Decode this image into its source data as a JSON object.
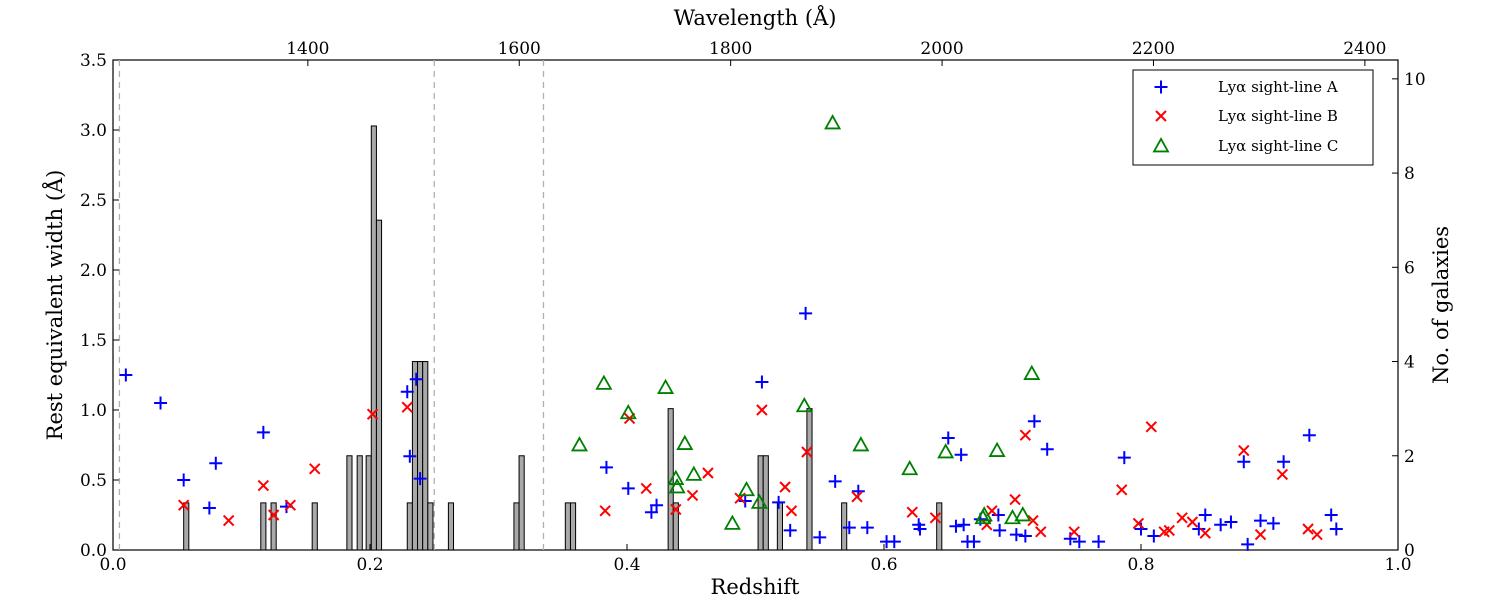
{
  "chart_data": {
    "type": "scatter",
    "x_label": "Redshift",
    "x_ticks": [
      "0.0",
      "0.2",
      "0.4",
      "0.6",
      "0.8",
      "1.0"
    ],
    "x_tick_values": [
      0.0,
      0.2,
      0.4,
      0.6,
      0.8,
      1.0
    ],
    "xlim": [
      0.0,
      1.0
    ],
    "top_label": "Wavelength (Å)",
    "top_ticks": [
      "1400",
      "1600",
      "1800",
      "2000",
      "2200",
      "2400"
    ],
    "top_tick_values": [
      1400,
      1600,
      1800,
      2000,
      2200,
      2400
    ],
    "top_wavelength_at_z0": 1215.67,
    "y_label": "Rest equivalent width (Å)",
    "y_ticks": [
      "0.0",
      "0.5",
      "1.0",
      "1.5",
      "2.0",
      "2.5",
      "3.0",
      "3.5"
    ],
    "y_tick_values": [
      0.0,
      0.5,
      1.0,
      1.5,
      2.0,
      2.5,
      3.0,
      3.5
    ],
    "ylim": [
      0.0,
      3.5
    ],
    "y2_label": "No. of galaxies",
    "y2_ticks": [
      "0",
      "2",
      "4",
      "6",
      "8",
      "10"
    ],
    "y2_tick_values": [
      0,
      2,
      4,
      6,
      8,
      10
    ],
    "y2lim": [
      0,
      10.4
    ],
    "vlines": [
      0.005,
      0.25,
      0.335
    ],
    "histogram": {
      "bin_width": 0.004,
      "bins": [
        [
          0.055,
          1
        ],
        [
          0.115,
          1
        ],
        [
          0.123,
          1
        ],
        [
          0.155,
          1
        ],
        [
          0.182,
          2
        ],
        [
          0.19,
          2
        ],
        [
          0.197,
          2
        ],
        [
          0.201,
          9
        ],
        [
          0.205,
          7
        ],
        [
          0.229,
          1
        ],
        [
          0.233,
          4
        ],
        [
          0.237,
          4
        ],
        [
          0.241,
          4
        ],
        [
          0.245,
          1
        ],
        [
          0.261,
          1
        ],
        [
          0.312,
          1
        ],
        [
          0.316,
          2
        ],
        [
          0.352,
          1
        ],
        [
          0.356,
          1
        ],
        [
          0.432,
          3
        ],
        [
          0.436,
          1
        ],
        [
          0.502,
          2
        ],
        [
          0.506,
          2
        ],
        [
          0.517,
          1
        ],
        [
          0.54,
          3
        ],
        [
          0.567,
          1
        ],
        [
          0.641,
          1
        ]
      ]
    },
    "legend": [
      {
        "label": "Lyα sight-line A",
        "marker": "plus",
        "color": "#0000ff"
      },
      {
        "label": "Lyα sight-line B",
        "marker": "x",
        "color": "#ff0000"
      },
      {
        "label": "Lyα sight-line C",
        "marker": "triangle",
        "color": "#008000"
      }
    ],
    "series": [
      {
        "name": "Lyα sight-line A",
        "marker": "plus",
        "color": "#0000ff",
        "points": [
          [
            0.01,
            1.25
          ],
          [
            0.037,
            1.05
          ],
          [
            0.055,
            0.5
          ],
          [
            0.075,
            0.3
          ],
          [
            0.08,
            0.62
          ],
          [
            0.117,
            0.84
          ],
          [
            0.135,
            0.31
          ],
          [
            0.229,
            1.13
          ],
          [
            0.231,
            0.67
          ],
          [
            0.236,
            1.22
          ],
          [
            0.239,
            0.51
          ],
          [
            0.384,
            0.59
          ],
          [
            0.401,
            0.44
          ],
          [
            0.419,
            0.27
          ],
          [
            0.423,
            0.32
          ],
          [
            0.492,
            0.35
          ],
          [
            0.505,
            1.2
          ],
          [
            0.518,
            0.34
          ],
          [
            0.527,
            0.14
          ],
          [
            0.539,
            1.69
          ],
          [
            0.55,
            0.09
          ],
          [
            0.562,
            0.49
          ],
          [
            0.573,
            0.16
          ],
          [
            0.58,
            0.42
          ],
          [
            0.587,
            0.16
          ],
          [
            0.602,
            0.06
          ],
          [
            0.608,
            0.06
          ],
          [
            0.627,
            0.18
          ],
          [
            0.628,
            0.15
          ],
          [
            0.65,
            0.8
          ],
          [
            0.656,
            0.17
          ],
          [
            0.66,
            0.68
          ],
          [
            0.662,
            0.18
          ],
          [
            0.665,
            0.06
          ],
          [
            0.67,
            0.06
          ],
          [
            0.675,
            0.22
          ],
          [
            0.689,
            0.25
          ],
          [
            0.69,
            0.14
          ],
          [
            0.703,
            0.11
          ],
          [
            0.71,
            0.1
          ],
          [
            0.717,
            0.92
          ],
          [
            0.727,
            0.72
          ],
          [
            0.745,
            0.08
          ],
          [
            0.752,
            0.06
          ],
          [
            0.767,
            0.06
          ],
          [
            0.787,
            0.66
          ],
          [
            0.8,
            0.15
          ],
          [
            0.81,
            0.1
          ],
          [
            0.845,
            0.15
          ],
          [
            0.85,
            0.25
          ],
          [
            0.862,
            0.18
          ],
          [
            0.87,
            0.2
          ],
          [
            0.88,
            0.63
          ],
          [
            0.883,
            0.04
          ],
          [
            0.893,
            0.21
          ],
          [
            0.903,
            0.19
          ],
          [
            0.911,
            0.63
          ],
          [
            0.931,
            0.82
          ],
          [
            0.948,
            0.25
          ],
          [
            0.952,
            0.15
          ]
        ]
      },
      {
        "name": "Lyα sight-line B",
        "marker": "x",
        "color": "#ff0000",
        "points": [
          [
            0.055,
            0.32
          ],
          [
            0.09,
            0.21
          ],
          [
            0.117,
            0.46
          ],
          [
            0.125,
            0.25
          ],
          [
            0.138,
            0.32
          ],
          [
            0.157,
            0.58
          ],
          [
            0.202,
            0.97
          ],
          [
            0.229,
            1.02
          ],
          [
            0.383,
            0.28
          ],
          [
            0.402,
            0.94
          ],
          [
            0.415,
            0.44
          ],
          [
            0.438,
            0.29
          ],
          [
            0.451,
            0.39
          ],
          [
            0.463,
            0.55
          ],
          [
            0.488,
            0.37
          ],
          [
            0.505,
            1.0
          ],
          [
            0.523,
            0.45
          ],
          [
            0.528,
            0.28
          ],
          [
            0.54,
            0.7
          ],
          [
            0.579,
            0.38
          ],
          [
            0.622,
            0.27
          ],
          [
            0.64,
            0.23
          ],
          [
            0.68,
            0.18
          ],
          [
            0.684,
            0.28
          ],
          [
            0.702,
            0.36
          ],
          [
            0.71,
            0.82
          ],
          [
            0.716,
            0.21
          ],
          [
            0.722,
            0.13
          ],
          [
            0.748,
            0.13
          ],
          [
            0.785,
            0.43
          ],
          [
            0.798,
            0.19
          ],
          [
            0.808,
            0.88
          ],
          [
            0.818,
            0.13
          ],
          [
            0.822,
            0.14
          ],
          [
            0.832,
            0.23
          ],
          [
            0.84,
            0.2
          ],
          [
            0.85,
            0.12
          ],
          [
            0.88,
            0.71
          ],
          [
            0.893,
            0.11
          ],
          [
            0.91,
            0.54
          ],
          [
            0.93,
            0.15
          ],
          [
            0.937,
            0.11
          ]
        ]
      },
      {
        "name": "Lyα sight-line C",
        "marker": "triangle",
        "color": "#008000",
        "points": [
          [
            0.363,
            0.75
          ],
          [
            0.382,
            1.19
          ],
          [
            0.401,
            0.98
          ],
          [
            0.43,
            1.16
          ],
          [
            0.438,
            0.51
          ],
          [
            0.439,
            0.45
          ],
          [
            0.445,
            0.76
          ],
          [
            0.452,
            0.54
          ],
          [
            0.482,
            0.19
          ],
          [
            0.493,
            0.43
          ],
          [
            0.503,
            0.34
          ],
          [
            0.538,
            1.03
          ],
          [
            0.56,
            3.05
          ],
          [
            0.582,
            0.75
          ],
          [
            0.62,
            0.58
          ],
          [
            0.648,
            0.7
          ],
          [
            0.677,
            0.23
          ],
          [
            0.678,
            0.25
          ],
          [
            0.688,
            0.71
          ],
          [
            0.7,
            0.23
          ],
          [
            0.708,
            0.25
          ],
          [
            0.715,
            1.26
          ]
        ]
      }
    ]
  }
}
